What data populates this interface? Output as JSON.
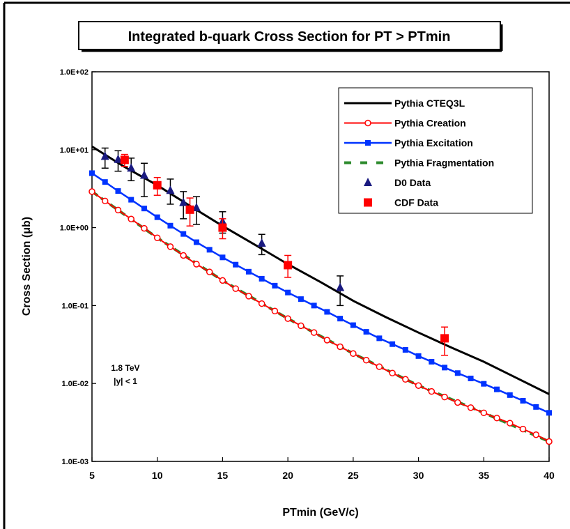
{
  "chart_data": {
    "type": "line",
    "title": "Integrated b-quark Cross Section for PT > PTmin",
    "xlabel": "PTmin  (GeV/c)",
    "ylabel": "Cross Section (μb)",
    "xlim": [
      5,
      40
    ],
    "ylim": [
      0.001,
      100
    ],
    "y_scale": "log",
    "x_ticks": [
      5,
      10,
      15,
      20,
      25,
      30,
      35,
      40
    ],
    "y_tick_values": [
      0.001,
      0.01,
      0.1,
      1,
      10,
      100
    ],
    "y_tick_labels": [
      "1.0E-03",
      "1.0E-02",
      "1.0E-01",
      "1.0E+00",
      "1.0E+01",
      "1.0E+02"
    ],
    "grid": false,
    "legend_position": "top-right",
    "annotation_lines": [
      "1.8 TeV",
      "|y| < 1"
    ],
    "colors": {
      "cteq3l": "#000000",
      "creation": "#ff0000",
      "excitation": "#0033ff",
      "fragmentation": "#2e8b2e",
      "d0": "#1a1a80",
      "cdf": "#ff0000"
    },
    "series": [
      {
        "name": "Pythia CTEQ3L",
        "style": "line",
        "x": [
          5,
          7.5,
          10,
          12.5,
          15,
          17.5,
          20,
          22.5,
          25,
          27.5,
          30,
          32.5,
          35,
          37.5,
          40
        ],
        "values": [
          11.0,
          6.0,
          3.5,
          1.9,
          1.05,
          0.6,
          0.34,
          0.2,
          0.115,
          0.071,
          0.045,
          0.029,
          0.019,
          0.0118,
          0.0073
        ]
      },
      {
        "name": "Pythia Creation",
        "style": "line-open-circle",
        "x": [
          5,
          6,
          7,
          8,
          9,
          10,
          11,
          12,
          13,
          14,
          15,
          16,
          17,
          18,
          19,
          20,
          21,
          22,
          23,
          24,
          25,
          26,
          27,
          28,
          29,
          30,
          31,
          32,
          33,
          34,
          35,
          36,
          37,
          38,
          39,
          40
        ],
        "values": [
          2.9,
          2.2,
          1.68,
          1.29,
          0.98,
          0.74,
          0.57,
          0.44,
          0.34,
          0.27,
          0.21,
          0.165,
          0.132,
          0.106,
          0.085,
          0.068,
          0.055,
          0.045,
          0.036,
          0.0296,
          0.0242,
          0.0199,
          0.0164,
          0.0136,
          0.0113,
          0.0094,
          0.0079,
          0.0067,
          0.0057,
          0.0049,
          0.0042,
          0.0036,
          0.0031,
          0.0026,
          0.0022,
          0.0018
        ]
      },
      {
        "name": "Pythia Excitation",
        "style": "line-square",
        "x": [
          5,
          6,
          7,
          8,
          9,
          10,
          11,
          12,
          13,
          14,
          15,
          16,
          17,
          18,
          19,
          20,
          21,
          22,
          23,
          24,
          25,
          26,
          27,
          28,
          29,
          30,
          31,
          32,
          33,
          34,
          35,
          36,
          37,
          38,
          39,
          40
        ],
        "values": [
          5.0,
          3.85,
          2.95,
          2.28,
          1.76,
          1.36,
          1.06,
          0.83,
          0.65,
          0.52,
          0.415,
          0.335,
          0.272,
          0.221,
          0.18,
          0.147,
          0.121,
          0.1,
          0.083,
          0.068,
          0.056,
          0.046,
          0.038,
          0.032,
          0.027,
          0.0225,
          0.019,
          0.016,
          0.0136,
          0.0116,
          0.0099,
          0.0084,
          0.0071,
          0.006,
          0.005,
          0.0042
        ]
      },
      {
        "name": "Pythia Fragmentation",
        "style": "dashed",
        "x": [
          5,
          10,
          15,
          20,
          25,
          30,
          35,
          40
        ],
        "values": [
          2.9,
          0.74,
          0.21,
          0.068,
          0.0242,
          0.0094,
          0.0042,
          0.0018
        ]
      },
      {
        "name": "D0 Data",
        "style": "triangle",
        "x": [
          6,
          7,
          8,
          9,
          11,
          12,
          13,
          15,
          18,
          24
        ],
        "values": [
          8.2,
          7.5,
          5.8,
          4.7,
          3.0,
          2.1,
          1.8,
          1.2,
          0.63,
          0.17
        ],
        "err_low": [
          5.8,
          5.3,
          4.0,
          2.5,
          2.0,
          1.3,
          1.1,
          0.85,
          0.45,
          0.1
        ],
        "err_high": [
          10.5,
          9.7,
          7.8,
          6.7,
          4.2,
          2.9,
          2.5,
          1.6,
          0.82,
          0.24
        ]
      },
      {
        "name": "CDF Data",
        "style": "square",
        "x": [
          7.5,
          10,
          12.5,
          15,
          20,
          32
        ],
        "values": [
          7.4,
          3.5,
          1.7,
          1.0,
          0.33,
          0.038
        ],
        "err_low": [
          6.1,
          2.6,
          1.05,
          0.72,
          0.23,
          0.023
        ],
        "err_high": [
          8.7,
          4.4,
          2.4,
          1.3,
          0.44,
          0.053
        ]
      }
    ]
  }
}
